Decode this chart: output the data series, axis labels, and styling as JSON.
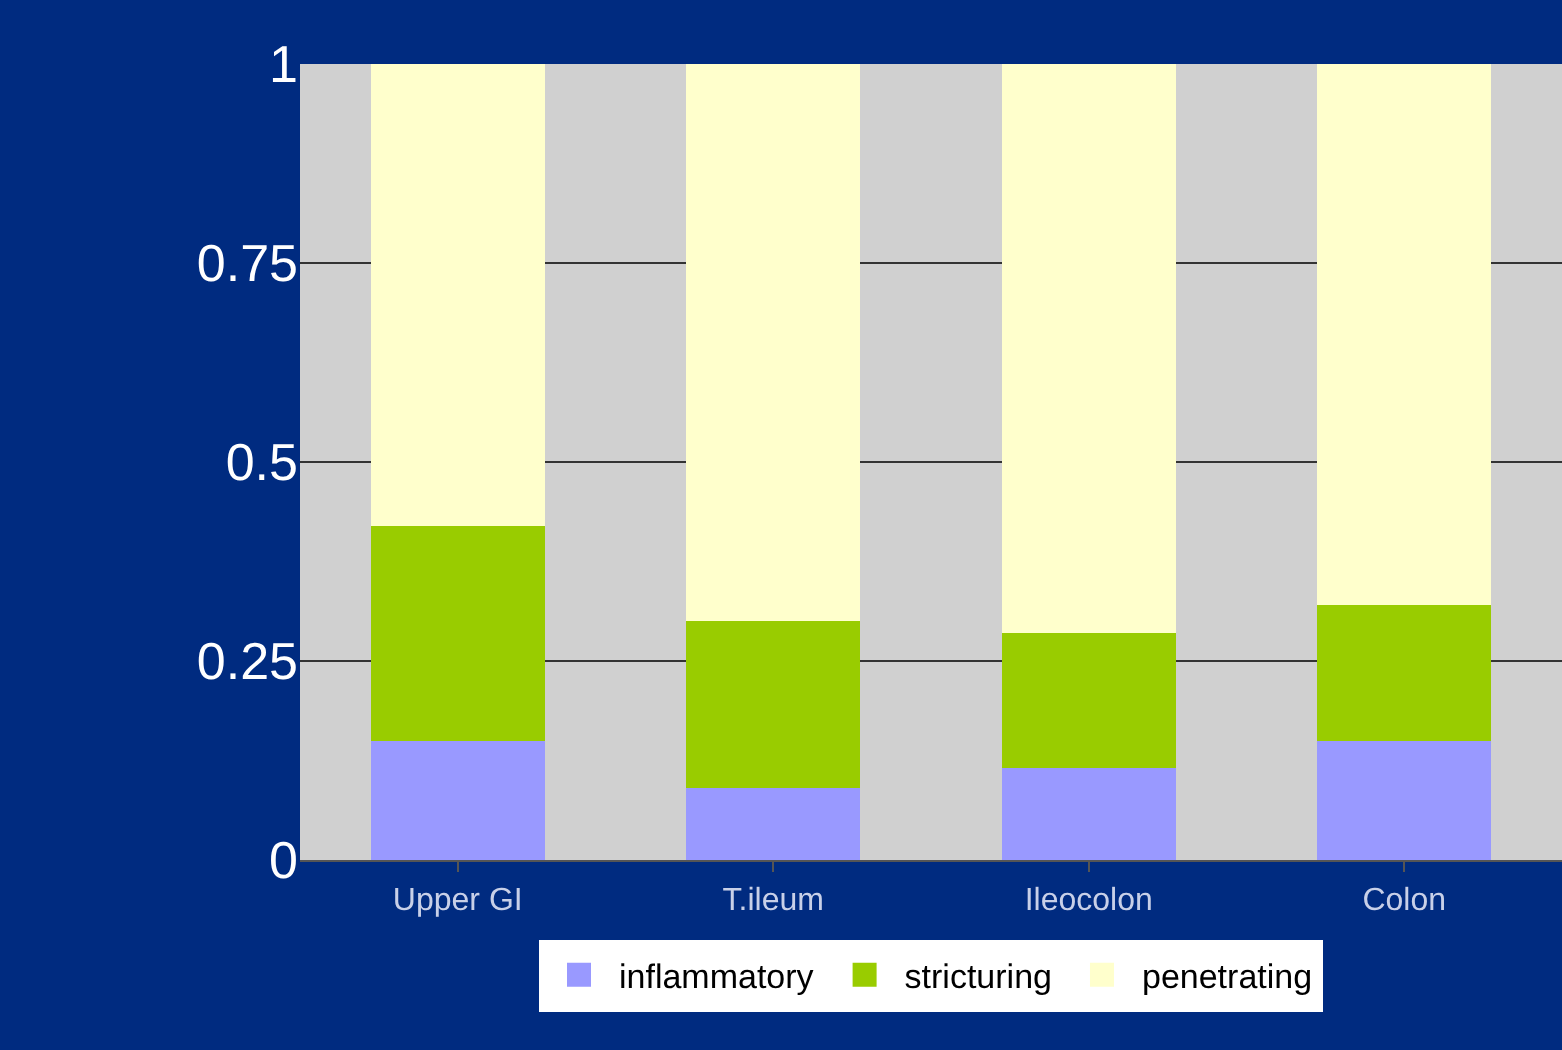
{
  "chart_data": {
    "type": "bar",
    "stacked": true,
    "categories": [
      "Upper GI",
      "T.ileum",
      "Ileocolon",
      "Colon"
    ],
    "series": [
      {
        "name": "inflammatory",
        "color": "#9999ff",
        "values": [
          0.15,
          0.09,
          0.115,
          0.15
        ]
      },
      {
        "name": "stricturing",
        "color": "#99cc00",
        "values": [
          0.27,
          0.21,
          0.17,
          0.17
        ]
      },
      {
        "name": "penetrating",
        "color": "#ffffcc",
        "values": [
          0.58,
          0.7,
          0.715,
          0.68
        ]
      }
    ],
    "ylim": [
      0,
      1
    ],
    "yticks": [
      0,
      0.25,
      0.5,
      0.75,
      1
    ],
    "grid": "y",
    "legend": "bottom"
  }
}
